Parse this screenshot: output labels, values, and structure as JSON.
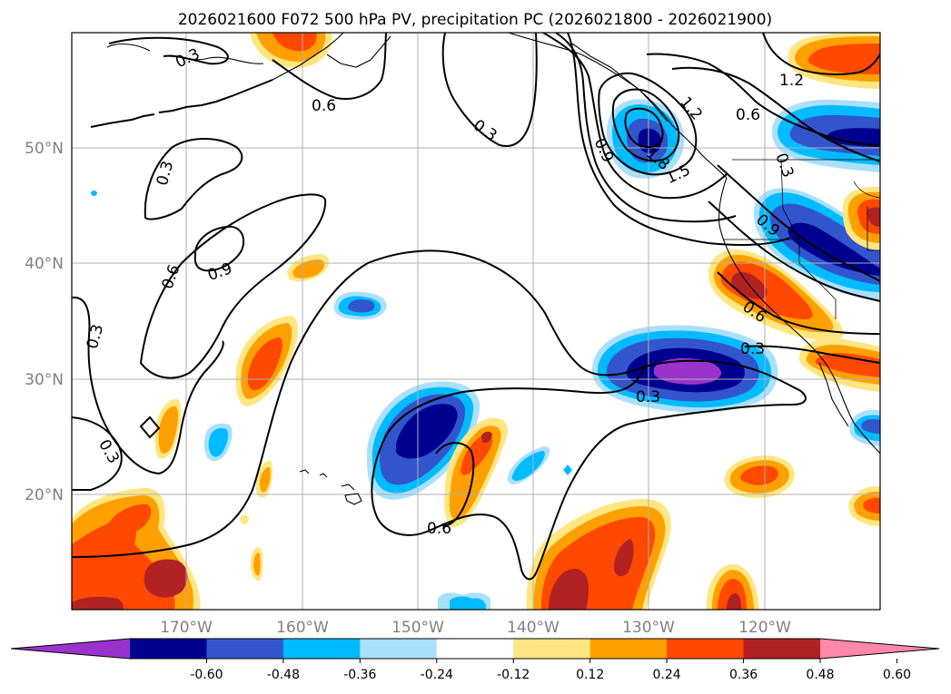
{
  "title": "2026021600 F072 500 hPa PV, precipitation PC (2026021800 - 2026021900)",
  "lat_labels": [
    "50°N",
    "40°N",
    "30°N",
    "20°N"
  ],
  "lon_labels": [
    "170°W",
    "160°W",
    "150°W",
    "140°W",
    "130°W",
    "120°W"
  ],
  "contour_labels": {
    "c1": "0.3",
    "c2": "0.6",
    "c3": "0.3",
    "c4": "0.6",
    "c5": "0.9",
    "c6": "0.3",
    "c7": "0.3",
    "c8": "0.3",
    "c9": "0.6",
    "c10": "0.9",
    "c11": "1.8",
    "c12": "1.5",
    "c13": "1.2",
    "c14": "0.6",
    "c15": "1.2",
    "c16": "0.3",
    "c17": "0.9",
    "c18": "0.6",
    "c19": "0.3",
    "c20": "0.3"
  },
  "colorbar": {
    "colors": [
      "#9933cc",
      "#000090",
      "#3355cc",
      "#00bbff",
      "#aae0ff",
      "#ffffff",
      "#ffe680",
      "#ffa000",
      "#ff4800",
      "#b22222",
      "#ff88aa"
    ],
    "ticks": [
      "-0.60",
      "-0.48",
      "-0.36",
      "-0.24",
      "-0.12",
      "0.12",
      "0.24",
      "0.36",
      "0.48",
      "0.60"
    ]
  },
  "colors": {
    "land": "#000000",
    "grid": "#b0b0b0",
    "contour": "#000000"
  }
}
